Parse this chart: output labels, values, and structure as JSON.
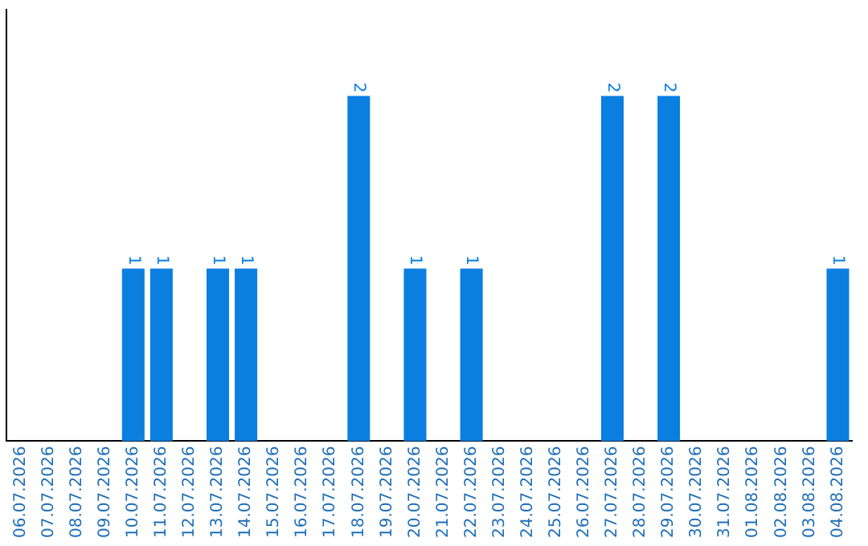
{
  "chart_data": {
    "type": "bar",
    "categories": [
      "06.07.2026",
      "07.07.2026",
      "08.07.2026",
      "09.07.2026",
      "10.07.2026",
      "11.07.2026",
      "12.07.2026",
      "13.07.2026",
      "14.07.2026",
      "15.07.2026",
      "16.07.2026",
      "17.07.2026",
      "18.07.2026",
      "19.07.2026",
      "20.07.2026",
      "21.07.2026",
      "22.07.2026",
      "23.07.2026",
      "24.07.2026",
      "25.07.2026",
      "26.07.2026",
      "27.07.2026",
      "28.07.2026",
      "29.07.2026",
      "30.07.2026",
      "31.07.2026",
      "01.08.2026",
      "02.08.2026",
      "03.08.2026",
      "04.08.2026"
    ],
    "values": [
      0,
      0,
      0,
      0,
      1,
      1,
      0,
      1,
      1,
      0,
      0,
      0,
      2,
      0,
      1,
      0,
      1,
      0,
      0,
      0,
      0,
      2,
      0,
      2,
      0,
      0,
      0,
      0,
      0,
      1
    ],
    "value_labels": [
      null,
      null,
      null,
      null,
      "1",
      "1",
      null,
      "1",
      "1",
      null,
      null,
      null,
      "2",
      null,
      "1",
      null,
      "1",
      null,
      null,
      null,
      null,
      "2",
      null,
      "2",
      null,
      null,
      null,
      null,
      null,
      "1"
    ],
    "color": "#0a7fe0",
    "grid": false,
    "legend": false
  }
}
